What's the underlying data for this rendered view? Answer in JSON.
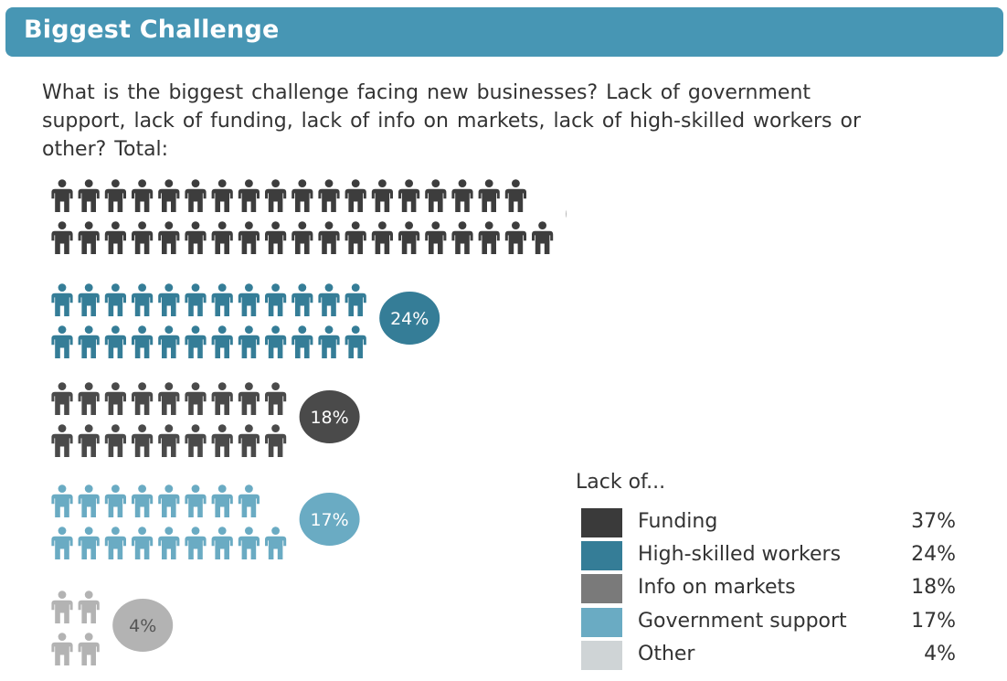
{
  "header": {
    "title": "Biggest Challenge"
  },
  "question": {
    "line1": "What is the biggest challenge facing new businesses? Lack of government",
    "line2": "support, lack of funding, lack of info on markets, lack of high-skilled workers or",
    "line3": "other? Total:"
  },
  "chart_data": {
    "type": "pictogram",
    "question": "What is the biggest challenge facing new businesses? Lack of government support, lack of funding, lack of info on markets, lack of high-skilled workers or other? Total:",
    "unit": "%",
    "icon": "person-icon",
    "series": [
      {
        "name": "Funding",
        "value": 37,
        "label": "37%",
        "color": "#3d3d3d",
        "label_text_color": "#ffffff"
      },
      {
        "name": "High-skilled workers",
        "value": 24,
        "label": "24%",
        "color": "#357d97",
        "label_text_color": "#ffffff"
      },
      {
        "name": "Info on markets",
        "value": 18,
        "label": "18%",
        "color": "#4a4a4a",
        "label_text_color": "#ffffff"
      },
      {
        "name": "Government support",
        "value": 17,
        "label": "17%",
        "color": "#6aabc3",
        "label_text_color": "#ffffff"
      },
      {
        "name": "Other",
        "value": 4,
        "label": "4%",
        "color": "#b3b3b3",
        "label_text_color": "#555555"
      }
    ],
    "legend": {
      "title": "Lack of...",
      "items": [
        {
          "label": "Funding",
          "value": "37%",
          "color": "#3a3a3a"
        },
        {
          "label": "High-skilled workers",
          "value": "24%",
          "color": "#357d97"
        },
        {
          "label": "Info on markets",
          "value": "18%",
          "color": "#7a7a7a"
        },
        {
          "label": "Government support",
          "value": "17%",
          "color": "#6aabc3"
        },
        {
          "label": "Other",
          "value": "4%",
          "color": "#cfd4d6"
        }
      ]
    }
  }
}
